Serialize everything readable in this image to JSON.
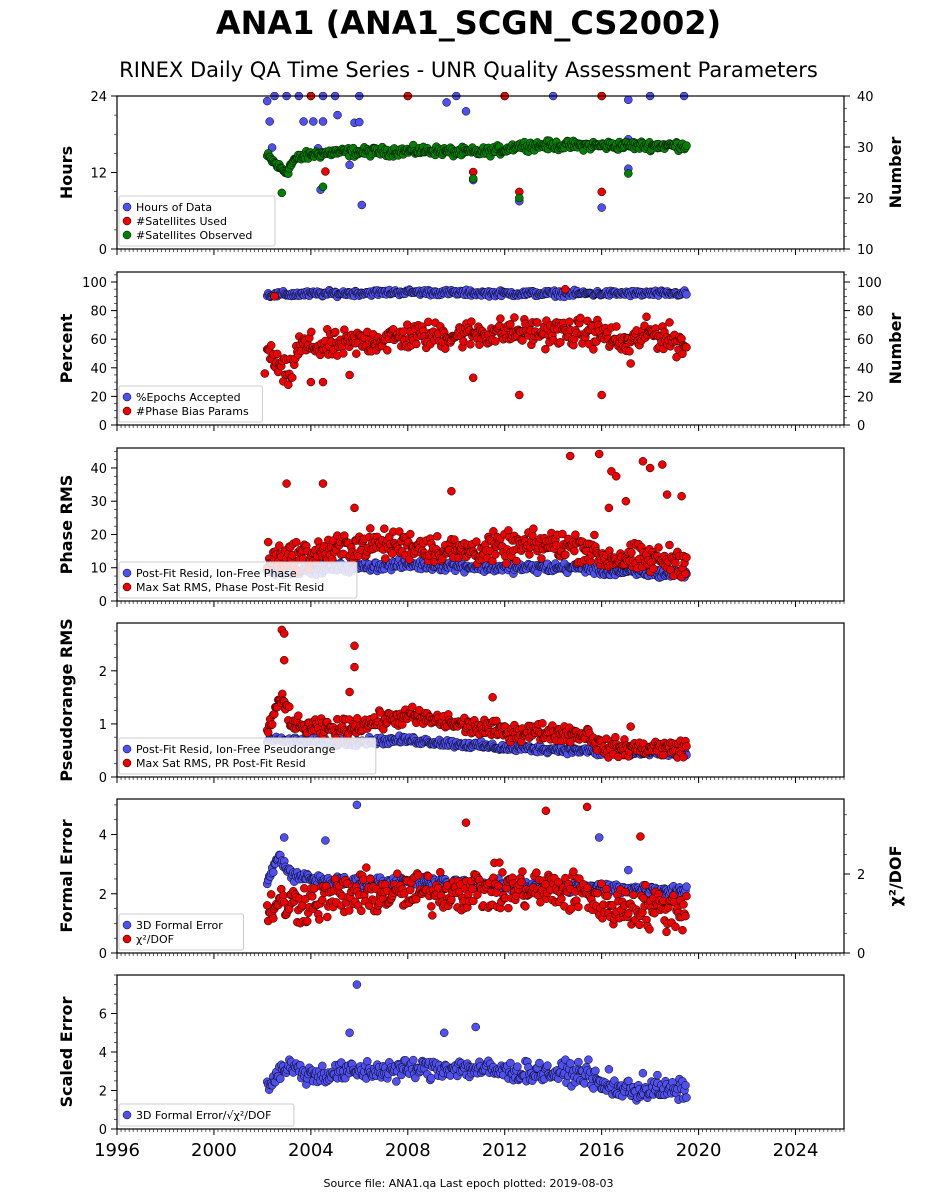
{
  "title": "ANA1 (ANA1_SCGN_CS2002)",
  "subtitle": "RINEX Daily QA Time Series - UNR Quality Assessment Parameters",
  "footer": "Source file: ANA1.qa Last epoch plotted: 2019-08-03",
  "colors": {
    "blue": "#5050f0",
    "red": "#ee0000",
    "green": "#008000",
    "edge": "#000000"
  },
  "chart_data": [
    {
      "type": "scatter",
      "ylabel": "Hours",
      "ylim": [
        0,
        24
      ],
      "yticks": [
        0,
        12,
        24
      ],
      "y2label": "Number",
      "y2lim": [
        10,
        40
      ],
      "y2ticks": [
        10,
        20,
        30,
        40
      ],
      "xlim": [
        1996,
        2026
      ],
      "legend_location": "lower-left",
      "series": [
        {
          "name": "Hours of Data",
          "color": "blue",
          "axis": "left",
          "key": "hours",
          "points": [
            [
              2002.2,
              23.2
            ],
            [
              2002.5,
              24
            ],
            [
              2003.0,
              24
            ],
            [
              2003.5,
              24
            ],
            [
              2004.0,
              24
            ],
            [
              2004.5,
              24
            ],
            [
              2005.0,
              24
            ],
            [
              2006.0,
              24
            ],
            [
              2008.0,
              24
            ],
            [
              2010.0,
              24
            ],
            [
              2012.0,
              24
            ],
            [
              2014.0,
              24
            ],
            [
              2016.0,
              24
            ],
            [
              2018.0,
              24
            ],
            [
              2019.4,
              24
            ],
            [
              2002.3,
              20
            ],
            [
              2002.4,
              15.9
            ],
            [
              2003.7,
              20
            ],
            [
              2004.1,
              20
            ],
            [
              2004.5,
              20
            ],
            [
              2004.3,
              15.8
            ],
            [
              2004.4,
              9.3
            ],
            [
              2005.1,
              21.0
            ],
            [
              2005.8,
              19.8
            ],
            [
              2006.0,
              19.9
            ],
            [
              2005.6,
              13.2
            ],
            [
              2006.1,
              6.9
            ],
            [
              2009.6,
              23.0
            ],
            [
              2010.4,
              21.6
            ],
            [
              2010.7,
              10.8
            ],
            [
              2012.6,
              7.5
            ],
            [
              2016.0,
              6.5
            ],
            [
              2017.1,
              23.4
            ],
            [
              2017.1,
              17.2
            ],
            [
              2017.1,
              12.6
            ]
          ]
        },
        {
          "name": "#Satellites Used",
          "color": "red",
          "axis": "right",
          "key": "sat_used",
          "points": [
            [
              2004.0,
              40
            ],
            [
              2008.0,
              40
            ],
            [
              2012.0,
              40
            ],
            [
              2016.0,
              40
            ],
            [
              2004.6,
              25.2
            ],
            [
              2010.7,
              25.1
            ],
            [
              2012.6,
              21.2
            ],
            [
              2016.0,
              21.2
            ]
          ]
        },
        {
          "name": "#Satellites Observed",
          "color": "green",
          "axis": "right",
          "key": "sat_observed",
          "trend": [
            [
              2002.2,
              28.2
            ],
            [
              2002.7,
              26.0
            ],
            [
              2003.0,
              25.0
            ],
            [
              2003.3,
              27.5
            ],
            [
              2004.0,
              28.5
            ],
            [
              2005.0,
              29.0
            ],
            [
              2006.0,
              29.0
            ],
            [
              2008.0,
              29.2
            ],
            [
              2009.0,
              29.3
            ],
            [
              2010.0,
              29.0
            ],
            [
              2011.0,
              29.0
            ],
            [
              2012.0,
              29.5
            ],
            [
              2012.5,
              30.3
            ],
            [
              2014.0,
              30.3
            ],
            [
              2016.0,
              30.3
            ],
            [
              2018.0,
              30.3
            ],
            [
              2019.5,
              30.3
            ]
          ],
          "spread": 0.9,
          "points": [
            [
              2002.8,
              21.0
            ],
            [
              2004.5,
              22.2
            ],
            [
              2010.7,
              23.8
            ],
            [
              2012.6,
              20.0
            ],
            [
              2017.1,
              24.8
            ]
          ]
        }
      ]
    },
    {
      "type": "scatter",
      "ylabel": "Percent",
      "ylim": [
        0,
        107
      ],
      "yticks": [
        0,
        20,
        40,
        60,
        80,
        100
      ],
      "y2label": "Number",
      "y2lim": [
        0,
        107
      ],
      "y2ticks": [
        0,
        20,
        40,
        60,
        80,
        100
      ],
      "xlim": [
        1996,
        2026
      ],
      "legend_location": "lower-left",
      "series": [
        {
          "name": "%Epochs Accepted",
          "color": "blue",
          "axis": "left",
          "key": "epochs",
          "trend": [
            [
              2002.2,
              91
            ],
            [
              2005.0,
              92
            ],
            [
              2008.0,
              93
            ],
            [
              2012.0,
              92
            ],
            [
              2016.0,
              92
            ],
            [
              2019.5,
              92
            ]
          ],
          "spread": 2,
          "points": []
        },
        {
          "name": "#Phase Bias Params",
          "color": "red",
          "axis": "right",
          "key": "phase_bias",
          "trend": [
            [
              2002.2,
              52
            ],
            [
              2002.7,
              40
            ],
            [
              2003.1,
              33
            ],
            [
              2003.5,
              55
            ],
            [
              2005.0,
              55
            ],
            [
              2006.0,
              58
            ],
            [
              2008.0,
              62
            ],
            [
              2010.0,
              63
            ],
            [
              2012.0,
              65
            ],
            [
              2014.0,
              65
            ],
            [
              2016.0,
              64
            ],
            [
              2017.0,
              56
            ],
            [
              2018.0,
              65
            ],
            [
              2019.5,
              56
            ]
          ],
          "spread": 10,
          "points": [
            [
              2002.1,
              36
            ],
            [
              2002.5,
              90
            ],
            [
              2004.0,
              30
            ],
            [
              2004.5,
              30
            ],
            [
              2005.6,
              35
            ],
            [
              2010.7,
              33
            ],
            [
              2012.6,
              21
            ],
            [
              2016.0,
              21
            ],
            [
              2017.2,
              43
            ],
            [
              2014.5,
              95
            ]
          ]
        }
      ]
    },
    {
      "type": "scatter",
      "ylabel": "Phase RMS",
      "ylim": [
        0,
        46
      ],
      "yticks": [
        0,
        10,
        20,
        30,
        40
      ],
      "xlim": [
        1996,
        2026
      ],
      "legend_location": "lower-left",
      "series": [
        {
          "name": "Post-Fit Resid, Ion-Free Phase",
          "color": "blue",
          "axis": "left",
          "key": "phase_resid",
          "trend": [
            [
              2002.2,
              9
            ],
            [
              2005.0,
              10
            ],
            [
              2008.0,
              11
            ],
            [
              2012.0,
              10
            ],
            [
              2015.5,
              10
            ],
            [
              2016.0,
              9
            ],
            [
              2019.5,
              8
            ]
          ],
          "spread": 1.5,
          "points": []
        },
        {
          "name": "Max Sat RMS, Phase Post-Fit Resid",
          "color": "red",
          "axis": "left",
          "key": "phase_max",
          "trend": [
            [
              2002.2,
              13
            ],
            [
              2004.0,
              14
            ],
            [
              2006.0,
              17
            ],
            [
              2008.0,
              17
            ],
            [
              2010.0,
              15
            ],
            [
              2012.0,
              16
            ],
            [
              2014.0,
              17
            ],
            [
              2015.5,
              16
            ],
            [
              2016.0,
              13
            ],
            [
              2019.5,
              12
            ]
          ],
          "spread": 4.5,
          "points": [
            [
              2003.0,
              35.3
            ],
            [
              2004.5,
              35.3
            ],
            [
              2005.8,
              28
            ],
            [
              2009.8,
              33
            ],
            [
              2014.7,
              43.6
            ],
            [
              2015.9,
              44.2
            ],
            [
              2016.4,
              39
            ],
            [
              2016.6,
              37.5
            ],
            [
              2017.7,
              42
            ],
            [
              2018.0,
              40
            ],
            [
              2018.5,
              41
            ],
            [
              2017.0,
              30
            ],
            [
              2019.3,
              31.5
            ],
            [
              2016.3,
              28
            ],
            [
              2018.7,
              32
            ]
          ]
        }
      ]
    },
    {
      "type": "scatter",
      "ylabel": "Pseudorange RMS",
      "ylim": [
        0,
        2.9
      ],
      "yticks": [
        0,
        1,
        2
      ],
      "xlim": [
        1996,
        2026
      ],
      "legend_location": "lower-left",
      "series": [
        {
          "name": "Post-Fit Resid, Ion-Free Pseudorange",
          "color": "blue",
          "axis": "left",
          "key": "pr_resid",
          "trend": [
            [
              2002.2,
              0.7
            ],
            [
              2005.0,
              0.65
            ],
            [
              2008.0,
              0.7
            ],
            [
              2012.0,
              0.55
            ],
            [
              2015.5,
              0.5
            ],
            [
              2016.0,
              0.45
            ],
            [
              2019.5,
              0.45
            ]
          ],
          "spread": 0.07,
          "points": []
        },
        {
          "name": "Max Sat RMS, PR Post-Fit Resid",
          "color": "red",
          "axis": "left",
          "key": "pr_max",
          "trend": [
            [
              2002.2,
              0.85
            ],
            [
              2002.8,
              1.5
            ],
            [
              2003.3,
              0.95
            ],
            [
              2005.0,
              0.9
            ],
            [
              2008.0,
              1.15
            ],
            [
              2010.0,
              1.0
            ],
            [
              2012.0,
              0.85
            ],
            [
              2014.0,
              0.85
            ],
            [
              2015.5,
              0.8
            ],
            [
              2016.0,
              0.55
            ],
            [
              2019.5,
              0.55
            ]
          ],
          "spread": 0.17,
          "points": [
            [
              2002.8,
              2.77
            ],
            [
              2002.9,
              2.7
            ],
            [
              2002.9,
              2.2
            ],
            [
              2005.6,
              1.6
            ],
            [
              2005.8,
              2.47
            ],
            [
              2005.8,
              2.07
            ],
            [
              2011.5,
              1.5
            ],
            [
              2017.2,
              0.95
            ]
          ]
        }
      ]
    },
    {
      "type": "scatter",
      "ylabel": "Formal Error",
      "ylim": [
        0,
        5.2
      ],
      "yticks": [
        0,
        2,
        4
      ],
      "y2label": "χ²/DOF",
      "y2lim": [
        0,
        3.9
      ],
      "y2ticks": [
        0,
        2
      ],
      "xlim": [
        1996,
        2026
      ],
      "legend_location": "lower-left",
      "series": [
        {
          "name": "3D Formal Error",
          "color": "blue",
          "axis": "left",
          "key": "formal",
          "trend": [
            [
              2002.2,
              2.4
            ],
            [
              2002.7,
              3.3
            ],
            [
              2003.2,
              2.6
            ],
            [
              2005.0,
              2.4
            ],
            [
              2008.0,
              2.4
            ],
            [
              2012.0,
              2.3
            ],
            [
              2015.5,
              2.2
            ],
            [
              2016.0,
              2.2
            ],
            [
              2019.5,
              2.1
            ]
          ],
          "spread": 0.18,
          "points": [
            [
              2002.9,
              3.9
            ],
            [
              2004.6,
              3.8
            ],
            [
              2005.9,
              5.0
            ],
            [
              2015.9,
              3.9
            ],
            [
              2017.1,
              2.8
            ]
          ]
        },
        {
          "name": "χ²/DOF",
          "color": "red",
          "axis": "right",
          "key": "chi2",
          "trend": [
            [
              2002.2,
              1.2
            ],
            [
              2004.0,
              1.3
            ],
            [
              2006.0,
              1.5
            ],
            [
              2008.0,
              1.5
            ],
            [
              2010.0,
              1.6
            ],
            [
              2012.0,
              1.6
            ],
            [
              2014.0,
              1.6
            ],
            [
              2015.5,
              1.5
            ],
            [
              2016.0,
              1.2
            ],
            [
              2019.5,
              1.1
            ]
          ],
          "spread": 0.55,
          "points": [
            [
              2013.7,
              3.6
            ],
            [
              2015.4,
              3.7
            ],
            [
              2017.6,
              2.95
            ],
            [
              2010.4,
              3.3
            ]
          ]
        }
      ]
    },
    {
      "type": "scatter",
      "ylabel": "Scaled Error",
      "ylim": [
        0,
        8.0
      ],
      "yticks": [
        0,
        2,
        4,
        6
      ],
      "xlim": [
        1996,
        2026
      ],
      "xticks": [
        1996,
        2000,
        2004,
        2008,
        2012,
        2016,
        2020,
        2024
      ],
      "legend_location": "lower-left",
      "series": [
        {
          "name": "3D Formal Error/√χ²/DOF",
          "color": "blue",
          "axis": "left",
          "key": "scaled",
          "trend": [
            [
              2002.2,
              2.3
            ],
            [
              2003.0,
              3.3
            ],
            [
              2004.0,
              2.8
            ],
            [
              2006.0,
              3.0
            ],
            [
              2008.0,
              3.1
            ],
            [
              2010.0,
              3.2
            ],
            [
              2012.0,
              3.0
            ],
            [
              2014.0,
              2.9
            ],
            [
              2015.5,
              2.9
            ],
            [
              2016.0,
              2.2
            ],
            [
              2017.5,
              2.0
            ],
            [
              2019.5,
              2.0
            ]
          ],
          "spread": 0.55,
          "points": [
            [
              2005.9,
              7.5
            ],
            [
              2005.6,
              5.0
            ],
            [
              2010.8,
              5.3
            ],
            [
              2009.5,
              5.0
            ],
            [
              2016.3,
              3.1
            ],
            [
              2017.7,
              2.9
            ],
            [
              2018.3,
              2.8
            ]
          ]
        }
      ]
    }
  ]
}
